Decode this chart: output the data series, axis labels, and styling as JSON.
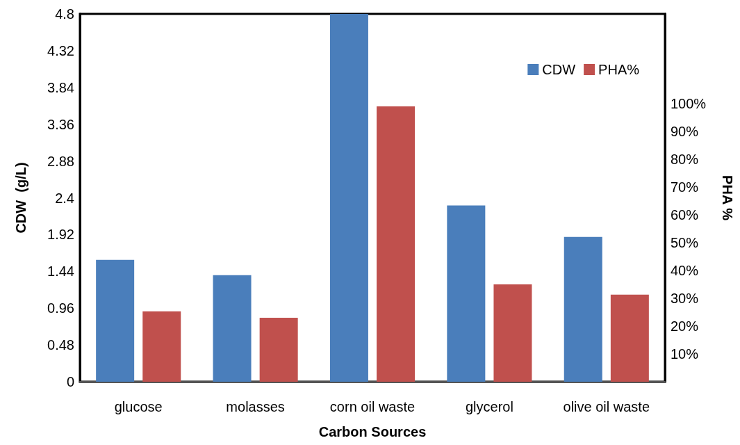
{
  "chart_data": {
    "type": "bar",
    "xlabel": "Carbon Sources",
    "ylabel": "CDW  (g/L)",
    "y2label": "PHA %",
    "categories": [
      "glucose",
      "molasses",
      "corn oil waste",
      "glycerol",
      "olive oil waste"
    ],
    "series": [
      {
        "name": "CDW",
        "color": "#4a7ebb",
        "values": [
          1.59,
          1.39,
          4.8,
          2.3,
          1.89
        ]
      },
      {
        "name": "PHA%",
        "color": "#c0504d",
        "axis": "y2",
        "values": [
          25.3,
          23,
          99,
          35,
          31.3
        ]
      }
    ],
    "ylim": [
      0,
      4.8
    ],
    "yticks": [
      0,
      0.48,
      0.96,
      1.44,
      1.92,
      2.4,
      2.88,
      3.36,
      3.84,
      4.32,
      4.8
    ],
    "y2lim": [
      0,
      132.25
    ],
    "y2ticks": [
      {
        "value": 10,
        "label": "10%"
      },
      {
        "value": 20,
        "label": "20%"
      },
      {
        "value": 30,
        "label": "30%"
      },
      {
        "value": 40,
        "label": "40%"
      },
      {
        "value": 50,
        "label": "50%"
      },
      {
        "value": 60,
        "label": "60%"
      },
      {
        "value": 70,
        "label": "70%"
      },
      {
        "value": 80,
        "label": "80%"
      },
      {
        "value": 90,
        "label": "90%"
      },
      {
        "value": 100,
        "label": "100%"
      }
    ],
    "grid": false,
    "legend": "top right"
  }
}
